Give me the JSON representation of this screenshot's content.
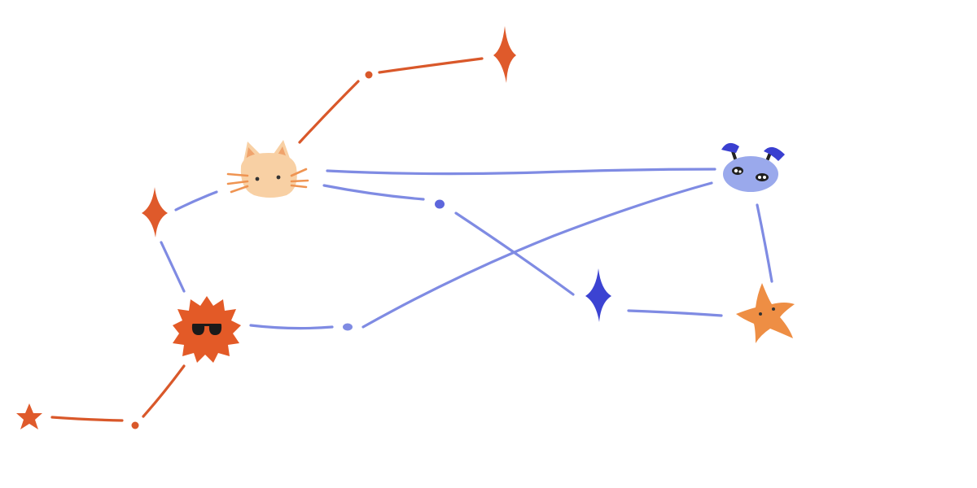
{
  "colors": {
    "background": "#ffffff",
    "orange_line": "#d9582a",
    "blue_line": "#7f8be3",
    "orange_star": "#df5a2b",
    "blue_star": "#3c43d2",
    "blue_dot": "#5d66dc",
    "cat_fur": "#f8d0a4",
    "cat_ear": "#f0a36c",
    "cat_whisker": "#ef9452",
    "sun_fill": "#e35a27",
    "sunglasses": "#1a1a1a",
    "bug_body": "#9aa9ec",
    "bug_antenna": "#3a3fd0",
    "starfish": "#ee8e44"
  },
  "figures": [
    {
      "name": "sparkle-star-icon",
      "color": "orange"
    },
    {
      "name": "sparkle-star-icon",
      "color": "orange"
    },
    {
      "name": "sparkle-star-icon",
      "color": "blue"
    },
    {
      "name": "small-star-icon",
      "color": "orange"
    },
    {
      "name": "cat-face-icon"
    },
    {
      "name": "sun-with-sunglasses-icon"
    },
    {
      "name": "blue-bug-face-icon"
    },
    {
      "name": "starfish-icon"
    }
  ]
}
